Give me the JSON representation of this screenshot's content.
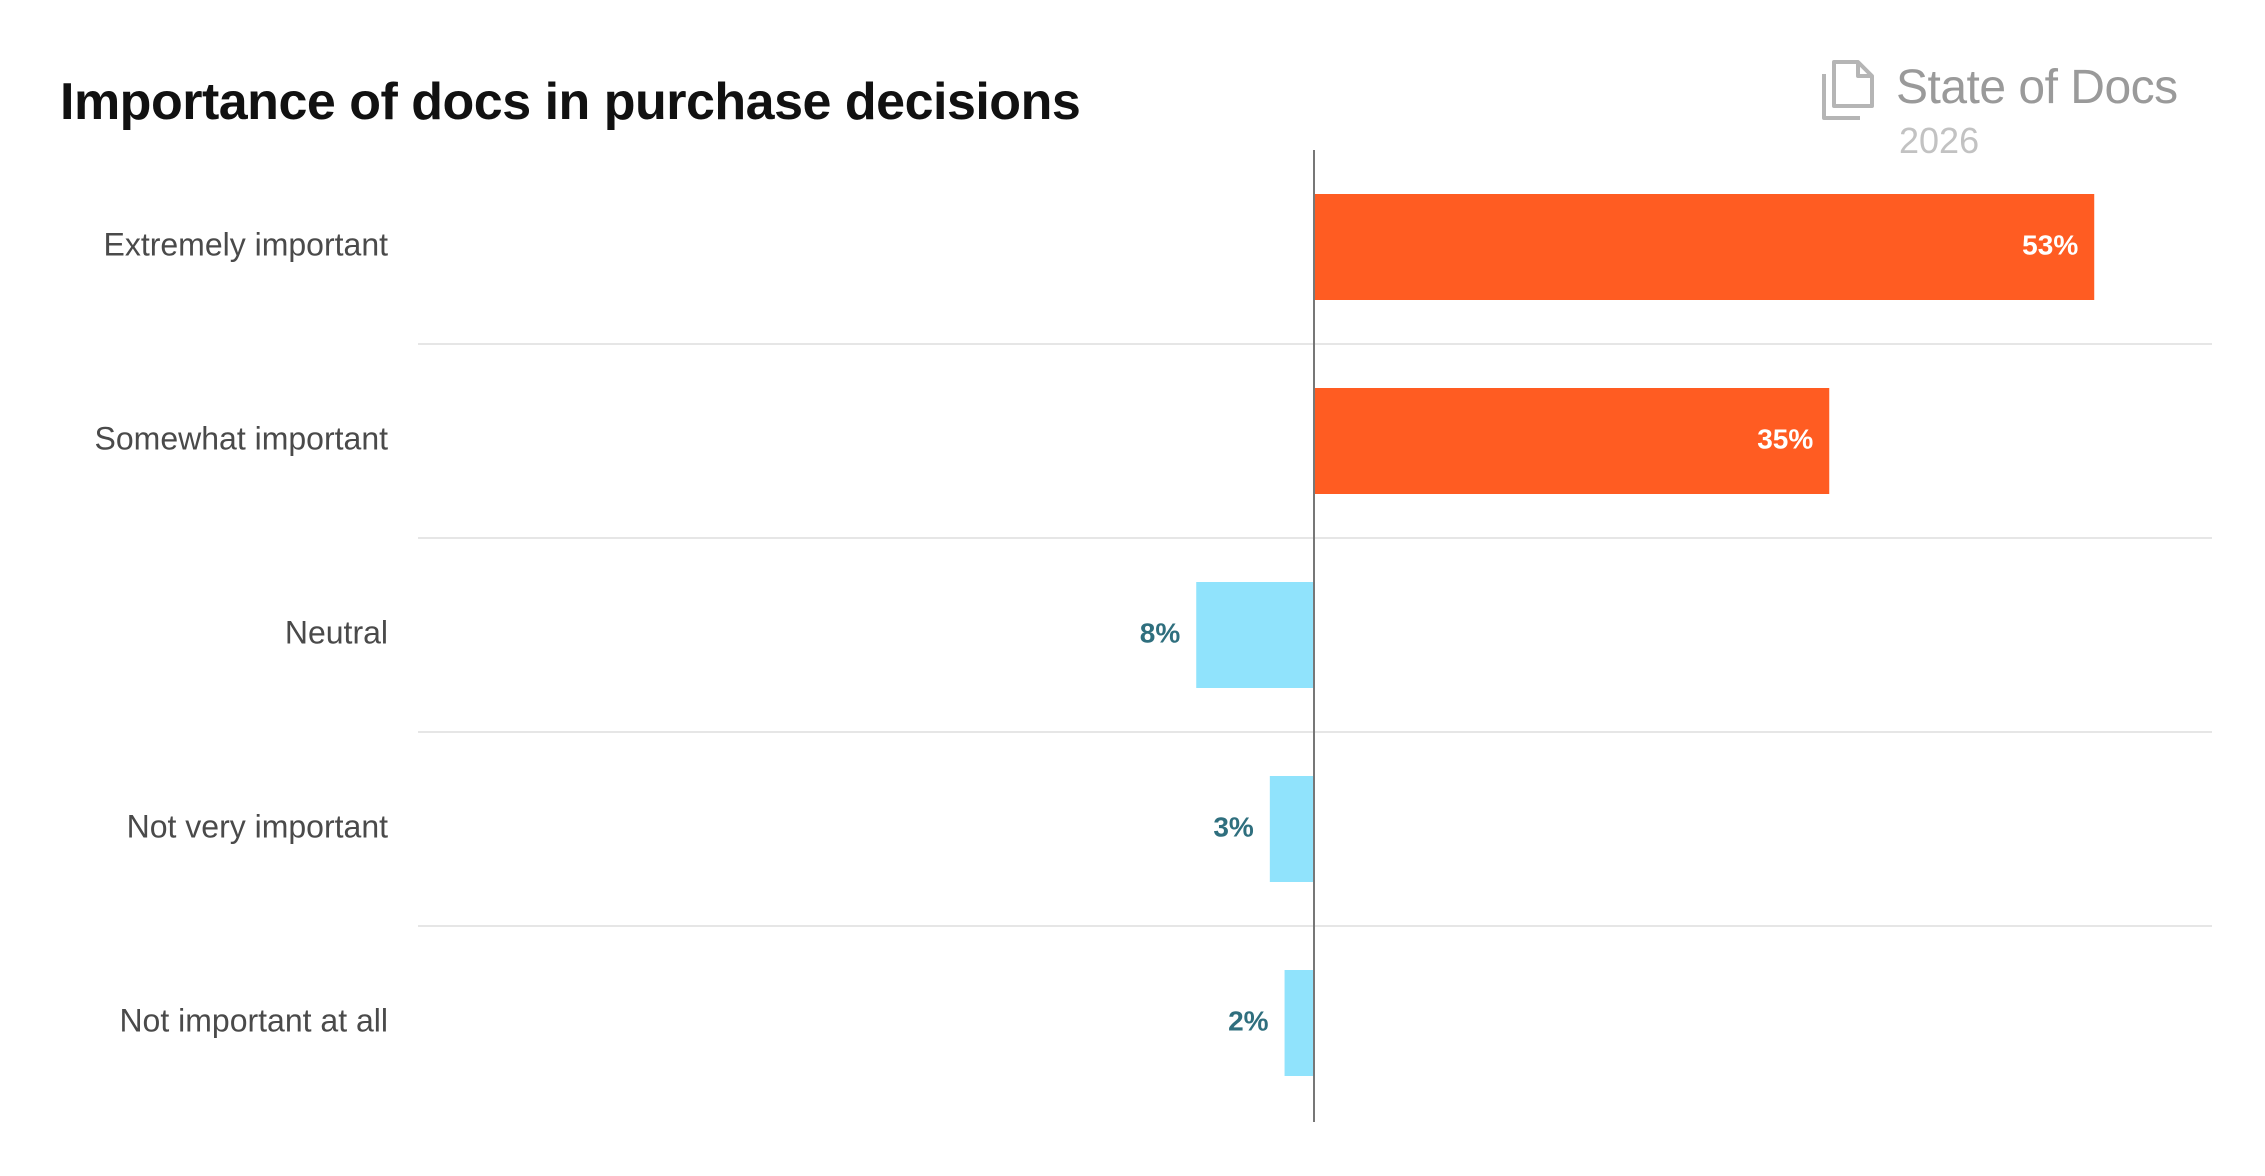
{
  "title": "Importance of docs in purchase decisions",
  "brand": {
    "name": "State of Docs",
    "year": "2026",
    "icon": "document-icon"
  },
  "colors": {
    "positive": "#ff5c22",
    "negative": "#90e3fc",
    "positive_label": "#ffffff",
    "negative_label": "#2f6f7e",
    "axis": "#777777",
    "grid": "#e6e6e6"
  },
  "chart_data": {
    "type": "bar",
    "orientation": "horizontal",
    "diverging": true,
    "title": "Importance of docs in purchase decisions",
    "categories": [
      "Extremely important",
      "Somewhat important",
      "Neutral",
      "Not very important",
      "Not important at all"
    ],
    "values": [
      53,
      35,
      8,
      3,
      2
    ],
    "value_labels": [
      "53%",
      "35%",
      "8%",
      "3%",
      "2%"
    ],
    "direction": [
      "positive",
      "positive",
      "negative",
      "negative",
      "negative"
    ],
    "unit": "%",
    "xlim": [
      -61,
      61
    ]
  }
}
